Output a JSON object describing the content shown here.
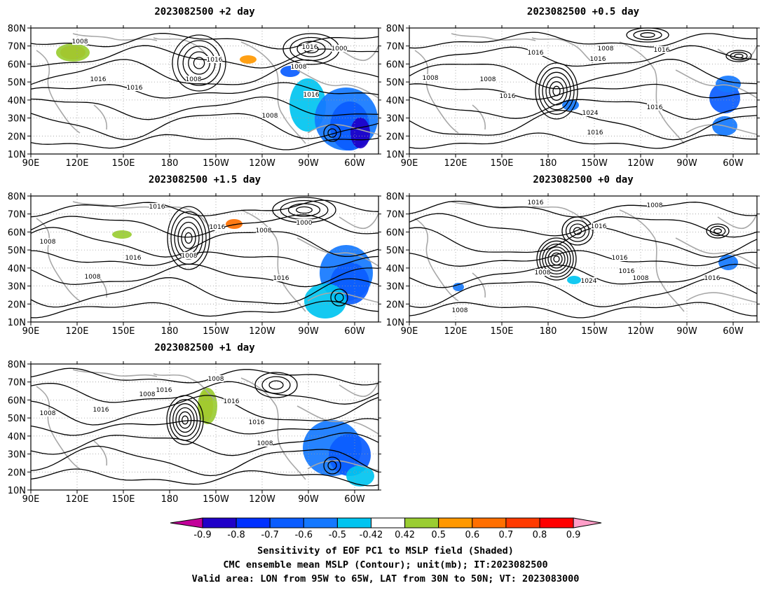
{
  "panels": [
    {
      "title": "2023082500  +2 day",
      "contour_labels": [
        "1008",
        "1016",
        "1016",
        "1008",
        "1016",
        "1016",
        "1000",
        "1008",
        "1016",
        "1008"
      ]
    },
    {
      "title": "2023082500  +0.5 day",
      "contour_labels": [
        "1008",
        "1016",
        "1008",
        "1016",
        "1008",
        "1016",
        "1016",
        "1024",
        "1016",
        "1016"
      ]
    },
    {
      "title": "2023082500  +1.5 day",
      "contour_labels": [
        "1008",
        "1016",
        "1016",
        "1008",
        "1016",
        "1000",
        "1008",
        "1016",
        "1008"
      ]
    },
    {
      "title": "2023082500  +0 day",
      "contour_labels": [
        "1016",
        "1008",
        "1016",
        "1016",
        "1008",
        "1024",
        "1016",
        "1008",
        "1016",
        "1008"
      ]
    },
    {
      "title": "2023082500  +1 day",
      "contour_labels": [
        "1008",
        "1016",
        "1016",
        "1008",
        "1016",
        "1016",
        "1008",
        "1008"
      ]
    }
  ],
  "axes": {
    "lon_ticks": [
      "90E",
      "120E",
      "150E",
      "180",
      "150W",
      "120W",
      "90W",
      "60W"
    ],
    "lat_ticks": [
      "80N",
      "70N",
      "60N",
      "50N",
      "40N",
      "30N",
      "20N",
      "10N"
    ]
  },
  "colorbar": {
    "labels": [
      "-0.9",
      "-0.8",
      "-0.7",
      "-0.6",
      "-0.5",
      "-0.42",
      "0.42",
      "0.5",
      "0.6",
      "0.7",
      "0.8",
      "0.9"
    ],
    "colors": [
      "#2000c8",
      "#0030ff",
      "#0a5cff",
      "#1478ff",
      "#00c4f0",
      "#ffffff",
      "#9acd32",
      "#ff9800",
      "#ff6f00",
      "#ff3a00",
      "#ff0000"
    ],
    "low_end_color": "#c2009a",
    "high_end_color": "#ff9ec8"
  },
  "caption": {
    "line1": "Sensitivity of EOF PC1 to MSLP field (Shaded)",
    "line2": "CMC ensemble mean MSLP (Contour); unit(mb); IT:2023082500",
    "line3": "Valid area: LON from 95W to 65W, LAT from 30N to 50N; VT: 2023083000"
  }
}
